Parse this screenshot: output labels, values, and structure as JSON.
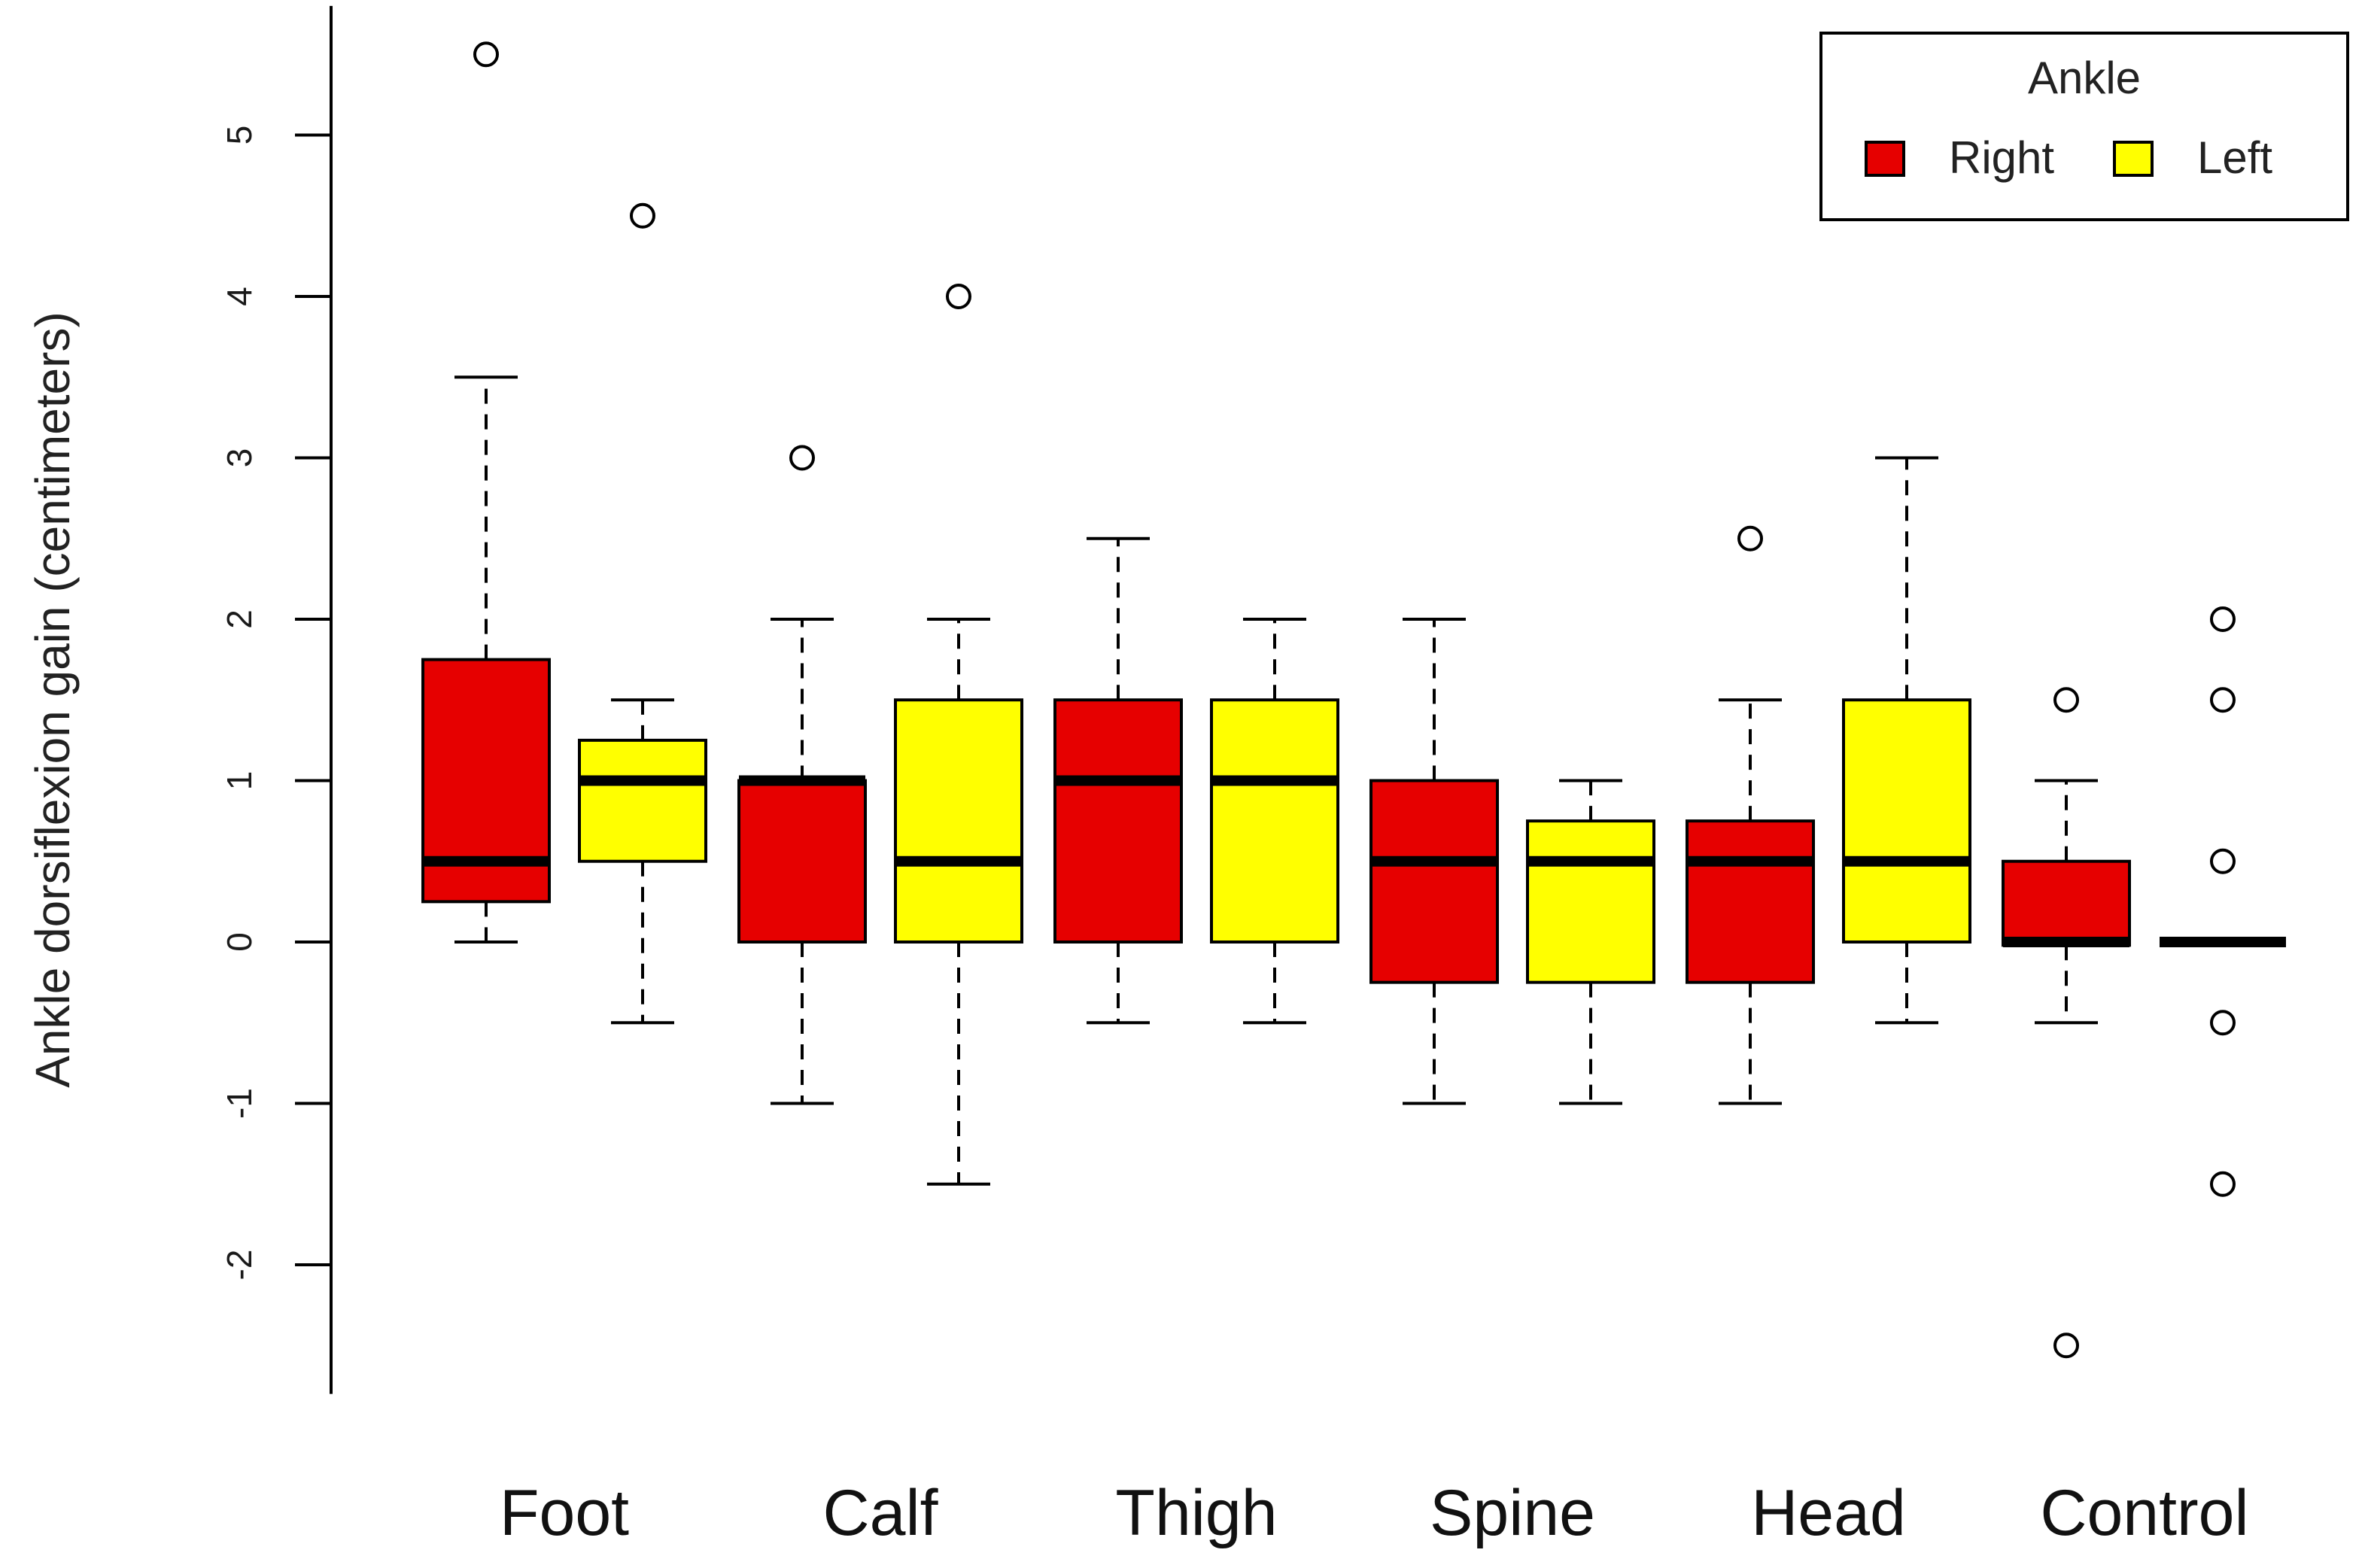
{
  "chart_data": {
    "type": "boxplot",
    "ylabel": "Ankle dorsiflexion gain (centimeters)",
    "xlabel": "",
    "ylim": [
      -2.8,
      5.8
    ],
    "yticks": [
      -2,
      -1,
      0,
      1,
      2,
      3,
      4,
      5
    ],
    "ytick_labels": [
      "-2",
      "-1",
      "0",
      "1",
      "2",
      "3",
      "4",
      "5"
    ],
    "categories": [
      "Foot",
      "Calf",
      "Thigh",
      "Spine",
      "Head",
      "Control"
    ],
    "legend": {
      "title": "Ankle",
      "position": "top-right",
      "entries": [
        {
          "label": "Right",
          "color": "#e60000"
        },
        {
          "label": "Left",
          "color": "#ffff00"
        }
      ]
    },
    "series": [
      {
        "name": "Right",
        "color": "#e60000",
        "boxes": [
          {
            "category": "Foot",
            "whisker_low": 0,
            "q1": 0.25,
            "median": 0.5,
            "q3": 1.75,
            "whisker_high": 3.5,
            "outliers": [
              5.5
            ]
          },
          {
            "category": "Calf",
            "whisker_low": -1,
            "q1": 0,
            "median": 1,
            "q3": 1,
            "whisker_high": 2,
            "outliers": [
              3
            ]
          },
          {
            "category": "Thigh",
            "whisker_low": -0.5,
            "q1": 0,
            "median": 1,
            "q3": 1.5,
            "whisker_high": 2.5,
            "outliers": []
          },
          {
            "category": "Spine",
            "whisker_low": -1,
            "q1": -0.25,
            "median": 0.5,
            "q3": 1,
            "whisker_high": 2,
            "outliers": []
          },
          {
            "category": "Head",
            "whisker_low": -1,
            "q1": -0.25,
            "median": 0.5,
            "q3": 0.75,
            "whisker_high": 1.5,
            "outliers": [
              2.5
            ]
          },
          {
            "category": "Control",
            "whisker_low": -0.5,
            "q1": -0.02,
            "median": 0,
            "q3": 0.5,
            "whisker_high": 1,
            "outliers": [
              1.5,
              -2.5
            ]
          }
        ]
      },
      {
        "name": "Left",
        "color": "#ffff00",
        "boxes": [
          {
            "category": "Foot",
            "whisker_low": -0.5,
            "q1": 0.5,
            "median": 1,
            "q3": 1.25,
            "whisker_high": 1.5,
            "outliers": [
              4.5
            ]
          },
          {
            "category": "Calf",
            "whisker_low": -1.5,
            "q1": 0,
            "median": 0.5,
            "q3": 1.5,
            "whisker_high": 2,
            "outliers": [
              4
            ]
          },
          {
            "category": "Thigh",
            "whisker_low": -0.5,
            "q1": 0,
            "median": 1,
            "q3": 1.5,
            "whisker_high": 2,
            "outliers": []
          },
          {
            "category": "Spine",
            "whisker_low": -1,
            "q1": -0.25,
            "median": 0.5,
            "q3": 0.75,
            "whisker_high": 1,
            "outliers": []
          },
          {
            "category": "Head",
            "whisker_low": -0.5,
            "q1": 0,
            "median": 0.5,
            "q3": 1.5,
            "whisker_high": 3,
            "outliers": []
          },
          {
            "category": "Control",
            "whisker_low": 0,
            "q1": 0,
            "median": 0,
            "q3": 0,
            "whisker_high": 0,
            "outliers": [
              2,
              1.5,
              0.5,
              -0.5,
              -1.5
            ]
          }
        ]
      }
    ]
  }
}
